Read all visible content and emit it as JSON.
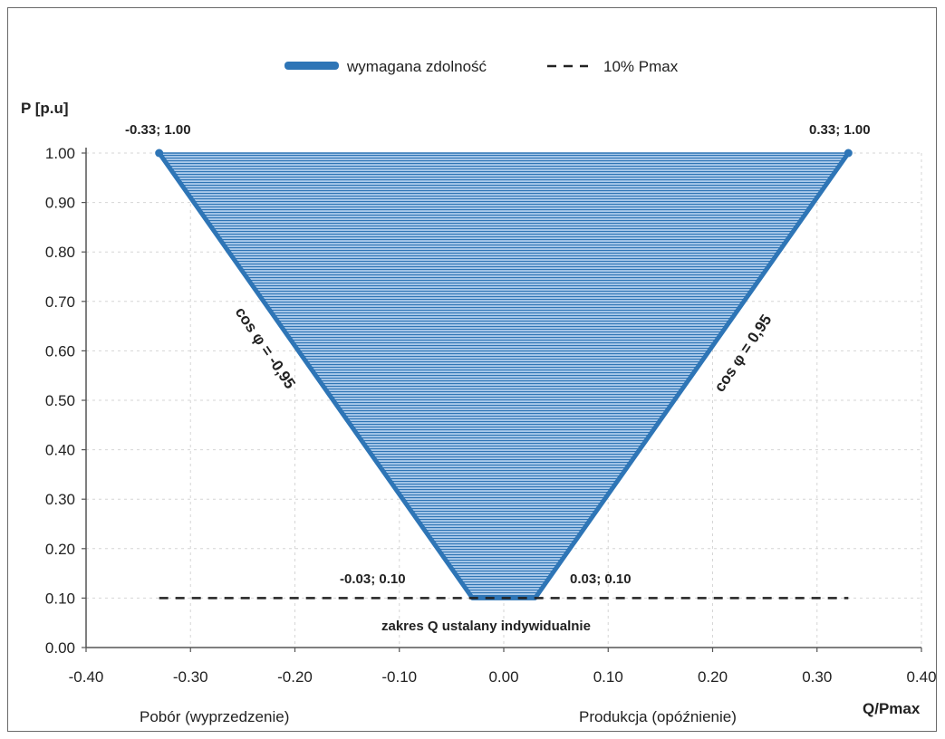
{
  "colors": {
    "fill": "#5b9bd5",
    "hatch": "#2f75b5",
    "edge": "#2e75b6",
    "dash": "#222222",
    "grid": "#d6d6d6"
  },
  "chart_data": {
    "type": "area",
    "ylabel": "P [p.u]",
    "xlabel": "Q/Pmax",
    "xlim": [
      -0.4,
      0.4
    ],
    "ylim": [
      0.0,
      1.0
    ],
    "grid": true,
    "legend_position": "top-center",
    "x_tick_labels": [
      "-0.40",
      "-0.30",
      "-0.20",
      "-0.10",
      "0.00",
      "0.10",
      "0.20",
      "0.30",
      "0.40"
    ],
    "y_tick_labels": [
      "0.00",
      "0.10",
      "0.20",
      "0.30",
      "0.40",
      "0.50",
      "0.60",
      "0.70",
      "0.80",
      "0.90",
      "1.00"
    ],
    "series": [
      {
        "name": "wymagana zdolność",
        "style": "solid-filled",
        "points": [
          {
            "x": -0.33,
            "y": 1.0
          },
          {
            "x": -0.03,
            "y": 0.1
          },
          {
            "x": 0.03,
            "y": 0.1
          },
          {
            "x": 0.33,
            "y": 1.0
          }
        ]
      },
      {
        "name": "10% Pmax",
        "style": "dashed",
        "points": [
          {
            "x": -0.33,
            "y": 0.1
          },
          {
            "x": 0.33,
            "y": 0.1
          }
        ]
      }
    ],
    "point_labels": [
      "-0.33; 1.00",
      "0.33; 1.00",
      "-0.03; 0.10",
      "0.03; 0.10"
    ],
    "annotations": {
      "left_edge": "cos φ = -0,95",
      "right_edge": "cos φ = 0,95",
      "bottom_note": "zakres Q ustalany indywidualnie",
      "left_side": "Pobór (wyprzedzenie)",
      "right_side": "Produkcja (opóźnienie)"
    }
  }
}
